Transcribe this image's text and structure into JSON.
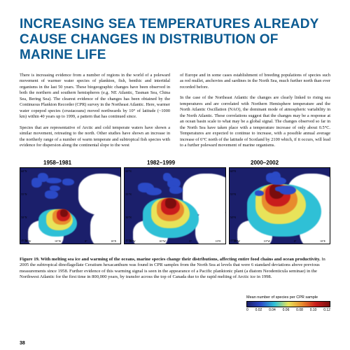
{
  "title": "INCREASING SEA TEMPERATURES ALREADY CAUSE CHANGES IN DISTRIBUTION OF MARINE LIFE",
  "left": {
    "p1": "There is increasing evidence from a number of regions in the world of a poleward movement of warmer water species of plankton, fish, benthic and intertidal organisms in the last 50 years. These biogeographic changes have been observed in both the northern and southern hemispheres (e.g. NE Atlantic, Tasman Sea, China Sea, Bering Sea). The clearest evidence of the changes has been obtained by the Continuous Plankton Recorder (CPR) survey in the Northeast Atlantic. Here, warmer water copepod species (crustaceans) moved northwards by 10° of latitude (~1000 km) within 40 years up to 1999, a pattern that has continued since.",
    "p2": "Species that are representative of Arctic and cold temperate waters have shown a similar movement, retreating to the north. Other studies have shown an increase in the northerly range of a number of warm temperate and subtropical fish species with evidence for dispersion along the continental slope to the west"
  },
  "right": {
    "p1": "of Europe and in some cases establishment of breeding populations of species such as red mullet, anchovies and sardines in the North Sea, much further north than ever recorded before.",
    "p2": "In the case of the Northeast Atlantic the changes are clearly linked to rising sea temperatures and are correlated with Northern Hemisphere temperature and the North Atlantic Oscillation (NAO), the dominant mode of atmospheric variability in the North Atlantic. These correlations suggest that the changes may be a response at an ocean basin scale to what may be a global signal. The changes observed so far in the North Sea have taken place with a temperature increase of only about 0.5°C. Temperatures are expected to continue to increase, with a possible annual average increase of 6°C north of the latitude of Scotland by 2100 which, if it occurs, will lead to a further poleward movement of marine organisms."
  },
  "years": [
    "1958–1981",
    "1982–1999",
    "2000–2002"
  ],
  "colors": {
    "deep": "#1b1f6b",
    "blue": "#2b4ac7",
    "cyan": "#2fc0d6",
    "yellow": "#e8e35a",
    "orange": "#e88b2d",
    "red": "#c91c1c",
    "darkred": "#7a0d0d"
  },
  "map_axis": {
    "lat": [
      "60°N",
      "55°N",
      "50°N",
      "45°N"
    ],
    "lon": [
      "20°W",
      "10°W",
      "0°",
      "10°E"
    ]
  },
  "maps": [
    {
      "spread": "low"
    },
    {
      "spread": "mid"
    },
    {
      "spread": "high"
    }
  ],
  "legend": {
    "title": "Mean number of species per CPR sample",
    "ticks": [
      "0",
      "0.02",
      "0.04",
      "0.06",
      "0.08",
      "0.10",
      "0.12"
    ]
  },
  "caption": {
    "bold": "Figure 19. With melting sea ice and warming of the oceans, marine species change their distributions, affecting entire food chains and ocean productivity.",
    "rest": " In 2005 the subtropical dinoflagellate Ceratium hexacanthum was found in CPR samples from the North Sea at levels that were 6 standard deviations above previous measurements since 1958. Further evidence of this warming signal is seen in the appearance of a Pacific planktonic plant (a diatom Neodenticula seminae) in the Northwest Atlantic for the first time in 800,000 years, by transfer across the top of Canada due to the rapid melting of Arctic ice in 1998."
  },
  "page": "38"
}
